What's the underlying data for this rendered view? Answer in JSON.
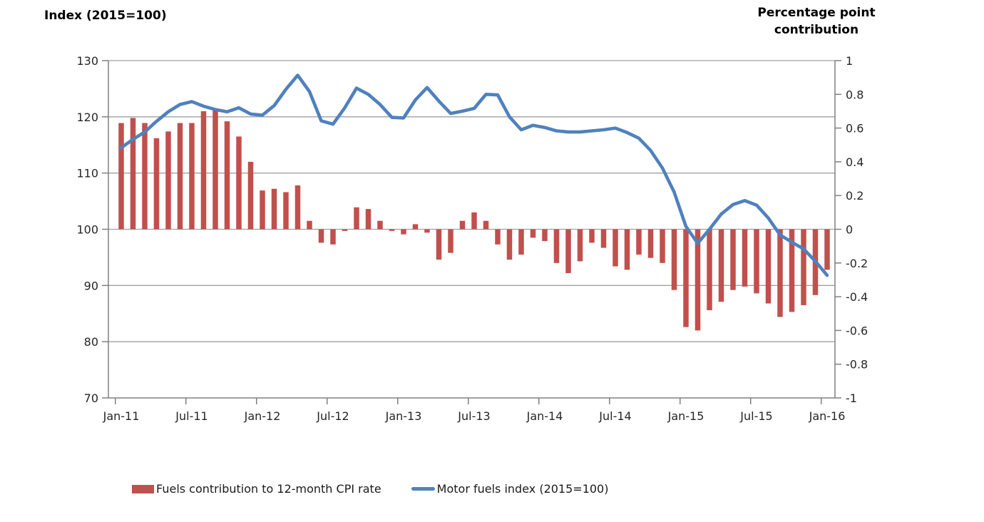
{
  "legend": {
    "bar_label": "Fuels contribution to 12-month CPI rate",
    "line_label": "Motor fuels index (2015=100)"
  },
  "chart_data": {
    "type": "combo-bar-line-dual-axis",
    "grid": "horizontal-only",
    "legend_position": "bottom",
    "categories": [
      "Jan-11",
      "Feb-11",
      "Mar-11",
      "Apr-11",
      "May-11",
      "Jun-11",
      "Jul-11",
      "Aug-11",
      "Sep-11",
      "Oct-11",
      "Nov-11",
      "Dec-11",
      "Jan-12",
      "Feb-12",
      "Mar-12",
      "Apr-12",
      "May-12",
      "Jun-12",
      "Jul-12",
      "Aug-12",
      "Sep-12",
      "Oct-12",
      "Nov-12",
      "Dec-12",
      "Jan-13",
      "Feb-13",
      "Mar-13",
      "Apr-13",
      "May-13",
      "Jun-13",
      "Jul-13",
      "Aug-13",
      "Sep-13",
      "Oct-13",
      "Nov-13",
      "Dec-13",
      "Jan-14",
      "Feb-14",
      "Mar-14",
      "Apr-14",
      "May-14",
      "Jun-14",
      "Jul-14",
      "Aug-14",
      "Sep-14",
      "Oct-14",
      "Nov-14",
      "Dec-14",
      "Jan-15",
      "Feb-15",
      "Mar-15",
      "Apr-15",
      "May-15",
      "Jun-15",
      "Jul-15",
      "Aug-15",
      "Sep-15",
      "Oct-15",
      "Nov-15",
      "Dec-15",
      "Jan-16"
    ],
    "x_tick_labels": [
      "Jan-11",
      "Jul-11",
      "Jan-12",
      "Jul-12",
      "Jan-13",
      "Jul-13",
      "Jan-14",
      "Jul-14",
      "Jan-15",
      "Jul-15",
      "Jan-16"
    ],
    "left_axis": {
      "title": "Index (2015=100)",
      "min": 70,
      "max": 130,
      "step": 10,
      "tick_labels": [
        "130",
        "120",
        "110",
        "100",
        "90",
        "80",
        "70"
      ]
    },
    "right_axis": {
      "title_lines": [
        "Percentage point",
        "contribution"
      ],
      "min": -1,
      "max": 1,
      "step": 0.2,
      "tick_labels": [
        "1",
        "0.8",
        "0.6",
        "0.4",
        "0.2",
        "0",
        "-0.2",
        "-0.4",
        "-0.6",
        "-0.8",
        "-1"
      ]
    },
    "series": [
      {
        "name": "Fuels contribution to 12-month CPI rate",
        "type": "bar",
        "axis": "right",
        "color": "#C0504D",
        "values": [
          0.63,
          0.66,
          0.63,
          0.54,
          0.58,
          0.63,
          0.63,
          0.7,
          0.71,
          0.64,
          0.55,
          0.4,
          0.23,
          0.24,
          0.22,
          0.26,
          0.05,
          -0.08,
          -0.09,
          -0.01,
          0.13,
          0.12,
          0.05,
          -0.01,
          -0.03,
          0.03,
          -0.02,
          -0.18,
          -0.14,
          0.05,
          0.1,
          0.05,
          -0.09,
          -0.18,
          -0.15,
          -0.05,
          -0.07,
          -0.2,
          -0.26,
          -0.19,
          -0.08,
          -0.11,
          -0.22,
          -0.24,
          -0.15,
          -0.17,
          -0.2,
          -0.36,
          -0.58,
          -0.6,
          -0.48,
          -0.43,
          -0.36,
          -0.34,
          -0.38,
          -0.44,
          -0.52,
          -0.49,
          -0.45,
          -0.39,
          -0.24
        ]
      },
      {
        "name": "Motor fuels index (2015=100)",
        "type": "line",
        "axis": "left",
        "color": "#4F81BD",
        "values": [
          114.5,
          116.0,
          117.3,
          119.2,
          120.9,
          122.2,
          122.7,
          121.9,
          121.3,
          120.9,
          121.6,
          120.5,
          120.3,
          122.0,
          124.9,
          127.4,
          124.5,
          119.3,
          118.7,
          121.6,
          125.1,
          124.0,
          122.2,
          119.9,
          119.8,
          123.0,
          125.2,
          122.8,
          120.6,
          121.0,
          121.5,
          124.0,
          123.9,
          120.0,
          117.7,
          118.5,
          118.1,
          117.5,
          117.3,
          117.3,
          117.5,
          117.7,
          118.0,
          117.2,
          116.2,
          114.0,
          110.9,
          106.6,
          100.5,
          97.5,
          100.0,
          102.7,
          104.4,
          105.1,
          104.3,
          102.0,
          99.0,
          97.7,
          96.5,
          94.3,
          91.8
        ]
      }
    ],
    "colors": {
      "gridline": "#a0a0a0",
      "axis": "#808080",
      "tick_text": "#262626"
    }
  }
}
